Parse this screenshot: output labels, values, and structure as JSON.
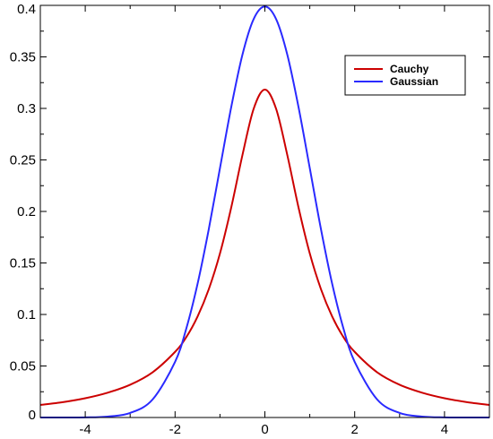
{
  "chart_data": {
    "type": "line",
    "title": "",
    "xlabel": "",
    "ylabel": "",
    "xlim": [
      -5,
      5
    ],
    "ylim": [
      0,
      0.4
    ],
    "x_ticks": [
      -4,
      -2,
      0,
      2,
      4
    ],
    "x_tick_labels": [
      "-4",
      "-2",
      "0",
      "2",
      "4"
    ],
    "y_ticks": [
      0,
      0.05,
      0.1,
      0.15,
      0.2,
      0.25,
      0.3,
      0.35,
      0.4
    ],
    "y_tick_labels": [
      "0",
      "0.05",
      "0.1",
      "0.15",
      "0.2",
      "0.25",
      "0.3",
      "0.35",
      "0.4"
    ],
    "grid": false,
    "legend_position": "top-right",
    "x": [
      -5,
      -4.5,
      -4,
      -3.5,
      -3,
      -2.5,
      -2,
      -1.75,
      -1.5,
      -1.25,
      -1,
      -0.75,
      -0.5,
      -0.25,
      0,
      0.25,
      0.5,
      0.75,
      1,
      1.25,
      1.5,
      1.75,
      2,
      2.5,
      3,
      3.5,
      4,
      4.5,
      5
    ],
    "series": [
      {
        "name": "Cauchy",
        "color": "#cc0000",
        "values": [
          0.0122,
          0.0149,
          0.0187,
          0.0241,
          0.0318,
          0.0439,
          0.0637,
          0.078,
          0.0979,
          0.1244,
          0.1592,
          0.2037,
          0.2546,
          0.2996,
          0.3183,
          0.2996,
          0.2546,
          0.2037,
          0.1592,
          0.1244,
          0.0979,
          0.078,
          0.0637,
          0.0439,
          0.0318,
          0.0241,
          0.0187,
          0.0149,
          0.0122
        ]
      },
      {
        "name": "Gaussian",
        "color": "#2a2aff",
        "values": [
          0.0,
          0.0,
          0.0001,
          0.0009,
          0.0044,
          0.0175,
          0.054,
          0.0863,
          0.1295,
          0.1826,
          0.242,
          0.3011,
          0.3521,
          0.3867,
          0.3989,
          0.3867,
          0.3521,
          0.3011,
          0.242,
          0.1826,
          0.1295,
          0.0863,
          0.054,
          0.0175,
          0.0044,
          0.0009,
          0.0001,
          0.0,
          0.0
        ]
      }
    ]
  }
}
